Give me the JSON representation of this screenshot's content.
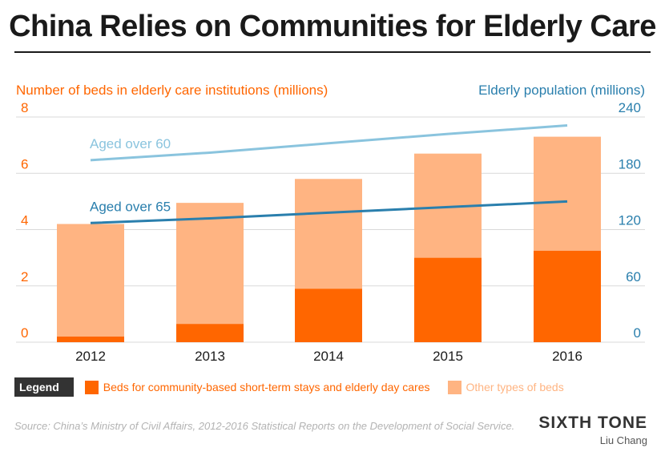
{
  "title": "China Relies on Communities for Elderly Care",
  "colors": {
    "left_axis": "#ff6600",
    "right_axis": "#2a7fad",
    "bar_dark": "#ff6600",
    "bar_light": "#ffb482",
    "line_60": "#8ac4de",
    "line_65": "#2a7fad",
    "grid": "#d9d9d9"
  },
  "chart_data": {
    "type": "bar",
    "categories": [
      "2012",
      "2013",
      "2014",
      "2015",
      "2016"
    ],
    "left_axis": {
      "title": "Number of beds in elderly care institutions (millions)",
      "ylim": [
        0,
        8
      ],
      "ticks": [
        "0",
        "2",
        "4",
        "6",
        "8"
      ]
    },
    "right_axis": {
      "title": "Elderly population (millions)",
      "ylim": [
        0,
        240
      ],
      "ticks": [
        "0",
        "60",
        "120",
        "180",
        "240"
      ]
    },
    "series": [
      {
        "name": "Beds for community-based short-term stays and elderly day cares",
        "axis": "left",
        "values": [
          0.2,
          0.65,
          1.9,
          3.0,
          3.25
        ]
      },
      {
        "name": "Other types of beds",
        "axis": "left",
        "values": [
          4.0,
          4.3,
          3.9,
          3.7,
          4.05
        ]
      }
    ],
    "lines": [
      {
        "name": "Aged over 60",
        "axis": "right",
        "values": [
          194,
          202,
          212,
          222,
          231
        ]
      },
      {
        "name": "Aged over 65",
        "axis": "right",
        "values": [
          127,
          132,
          138,
          144,
          150
        ]
      }
    ],
    "grid": true
  },
  "legend": {
    "tag": "Legend",
    "items": [
      {
        "label": "Beds for community-based short-term stays and elderly day cares"
      },
      {
        "label": "Other types of beds"
      }
    ]
  },
  "source": "Source: China’s Ministry of Civil Affairs, 2012-2016 Statistical Reports on the Development of Social Service.",
  "brand": "SIXTH TONE",
  "author": "Liu Chang"
}
